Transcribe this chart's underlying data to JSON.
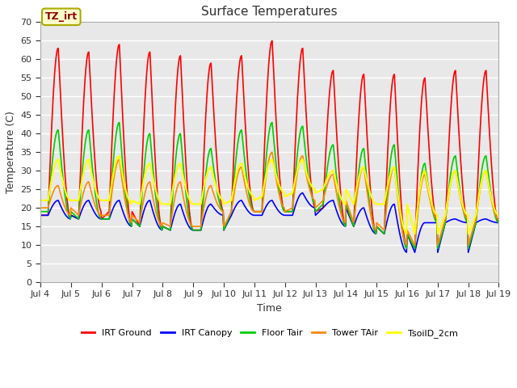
{
  "title": "Surface Temperatures",
  "xlabel": "Time",
  "ylabel": "Temperature (C)",
  "ylim": [
    0,
    70
  ],
  "yticks": [
    0,
    5,
    10,
    15,
    20,
    25,
    30,
    35,
    40,
    45,
    50,
    55,
    60,
    65,
    70
  ],
  "xtick_labels": [
    "Jul 4",
    "Jul 5",
    "Jul 6",
    "Jul 7",
    "Jul 8",
    "Jul 9",
    "Jul 10",
    "Jul 11",
    "Jul 12",
    "Jul 13",
    "Jul 14",
    "Jul 15",
    "Jul 16",
    "Jul 17",
    "Jul 18",
    "Jul 19"
  ],
  "annotation": "TZ_irt",
  "bg_color": "#e8e8e8",
  "fig_color": "#ffffff",
  "grid_color": "#ffffff",
  "series": [
    {
      "label": "IRT Ground",
      "color": "#ff0000",
      "lw": 1.2,
      "peaks": [
        63,
        62,
        64,
        62,
        61,
        59,
        61,
        65,
        63,
        57,
        56,
        56,
        55,
        57
      ],
      "mins": [
        18,
        17,
        19,
        15,
        14,
        14,
        19,
        19,
        19,
        20,
        15,
        13,
        9,
        16
      ]
    },
    {
      "label": "IRT Canopy",
      "color": "#0000ff",
      "lw": 1.2,
      "peaks": [
        22,
        22,
        22,
        22,
        21,
        21,
        22,
        22,
        24,
        22,
        20,
        21,
        16,
        17
      ],
      "mins": [
        18,
        17,
        17,
        15,
        14,
        14,
        18,
        18,
        18,
        20,
        15,
        13,
        8,
        16
      ]
    },
    {
      "label": "Floor Tair",
      "color": "#00cc00",
      "lw": 1.2,
      "peaks": [
        41,
        41,
        43,
        40,
        40,
        36,
        41,
        43,
        42,
        37,
        36,
        37,
        32,
        34
      ],
      "mins": [
        19,
        17,
        17,
        15,
        14,
        14,
        19,
        19,
        19,
        21,
        15,
        13,
        9,
        16
      ]
    },
    {
      "label": "Tower TAir",
      "color": "#ff8800",
      "lw": 1.2,
      "peaks": [
        26,
        27,
        33,
        27,
        27,
        26,
        31,
        35,
        34,
        29,
        31,
        31,
        29,
        30
      ],
      "mins": [
        20,
        18,
        18,
        16,
        15,
        15,
        19,
        19,
        20,
        22,
        16,
        14,
        10,
        17
      ]
    },
    {
      "label": "TsoilD_2cm",
      "color": "#ffff00",
      "lw": 1.5,
      "peaks": [
        33,
        33,
        34,
        32,
        32,
        31,
        32,
        33,
        33,
        30,
        31,
        31,
        30,
        30
      ],
      "mins": [
        22,
        22,
        22,
        21,
        21,
        21,
        22,
        23,
        24,
        25,
        21,
        21,
        13,
        18
      ]
    }
  ]
}
